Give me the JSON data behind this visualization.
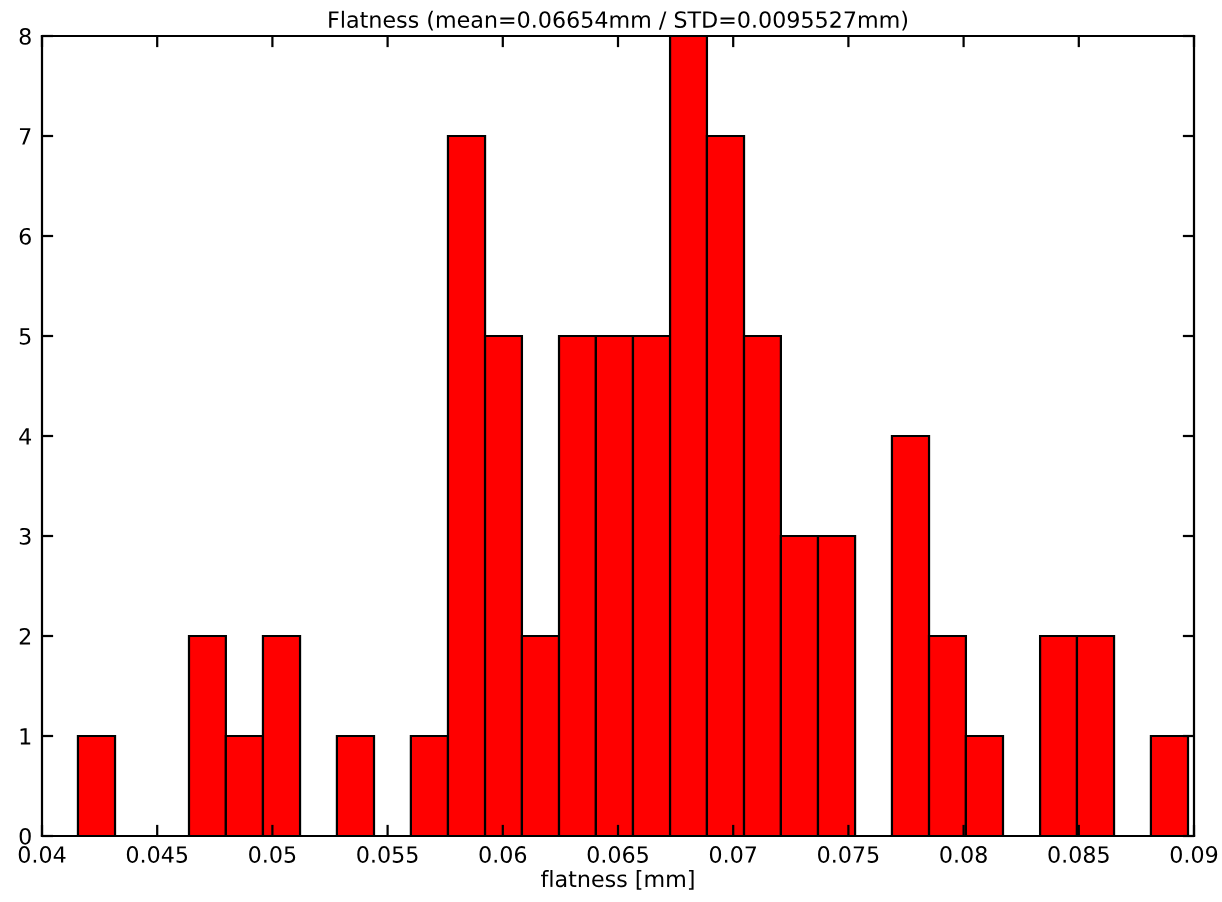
{
  "chart_data": {
    "type": "histogram",
    "title": "Flatness (mean=0.06654mm / STD=0.0095527mm)",
    "xlabel": "flatness [mm]",
    "bins": [
      0.04156,
      0.04317,
      0.04477,
      0.04638,
      0.04798,
      0.04959,
      0.0512,
      0.0528,
      0.05441,
      0.05601,
      0.05762,
      0.05923,
      0.06083,
      0.06244,
      0.06404,
      0.06565,
      0.06726,
      0.06886,
      0.07047,
      0.07207,
      0.07368,
      0.07529,
      0.07689,
      0.0785,
      0.0801,
      0.08171,
      0.08332,
      0.08492,
      0.08653,
      0.08813,
      0.08974
    ],
    "values": [
      1,
      0,
      0,
      2,
      1,
      2,
      0,
      1,
      0,
      1,
      7,
      5,
      2,
      5,
      5,
      5,
      8,
      7,
      5,
      3,
      3,
      0,
      4,
      2,
      1,
      0,
      2,
      2,
      0,
      1
    ],
    "color": "#ff0000",
    "xlim": [
      0.04,
      0.09
    ],
    "xticks": [
      0.04,
      {
        "value": 0.045,
        "label": "0.045"
      },
      0.05,
      {
        "value": 0.055,
        "label": "0.055"
      },
      {
        "value": 0.06,
        "label": "0.06"
      },
      {
        "value": 0.065,
        "label": "0.065"
      },
      {
        "value": 0.07,
        "label": "0.07"
      },
      {
        "value": 0.075,
        "label": "0.075"
      },
      {
        "value": 0.08,
        "label": "0.08"
      },
      {
        "value": 0.085,
        "label": "0.085"
      },
      {
        "value": 0.09,
        "label": "0.09"
      }
    ],
    "ylim": [
      0,
      8
    ],
    "yticks": [
      0,
      1,
      2,
      3,
      4,
      5,
      6,
      7,
      8
    ],
    "grid": false
  }
}
